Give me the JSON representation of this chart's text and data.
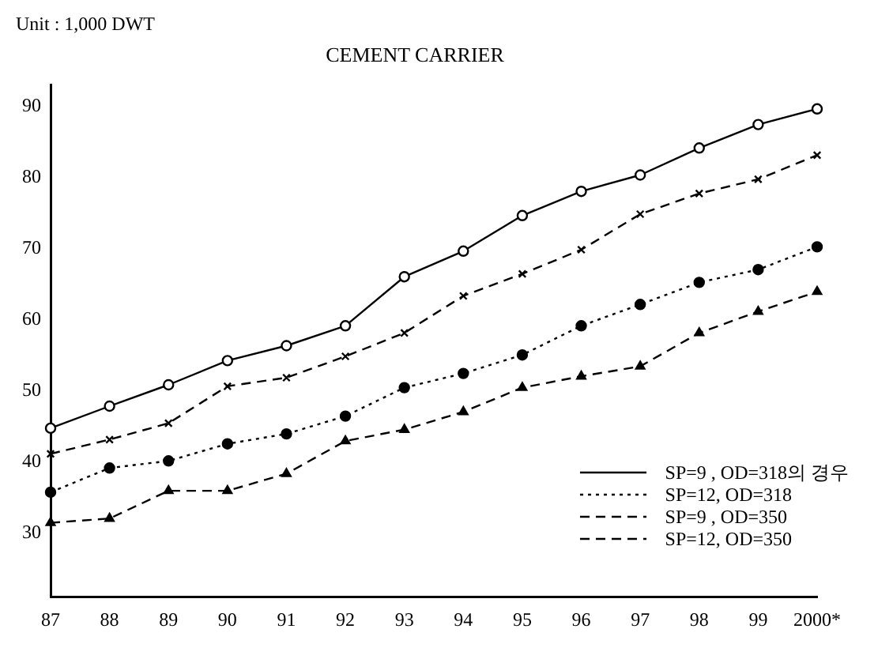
{
  "chart_data": {
    "type": "line",
    "title": "CEMENT CARRIER",
    "ylabel": "Unit :  1,000  DWT",
    "categories": [
      "87",
      "88",
      "89",
      "90",
      "91",
      "92",
      "93",
      "94",
      "95",
      "96",
      "97",
      "98",
      "99",
      "2000*"
    ],
    "series": [
      {
        "name": "SP=9 , OD=318의  경우",
        "color": "#000000",
        "marker": "circle",
        "line_style": "solid",
        "values": [
          44.7,
          47.8,
          50.8,
          54.2,
          56.3,
          59.1,
          66,
          69.6,
          74.6,
          78,
          80.3,
          84.1,
          87.4,
          89.6
        ]
      },
      {
        "name": "SP=12, OD=318",
        "color": "#000000",
        "marker": "circle",
        "line_style": "dotted",
        "values": [
          35.7,
          39.1,
          40.1,
          42.5,
          43.9,
          46.4,
          50.4,
          52.4,
          55,
          59.1,
          62.1,
          65.2,
          67,
          70.2
        ]
      },
      {
        "name": "SP=9 , OD=350",
        "color": "#000000",
        "marker": "cross",
        "line_style": "dashed",
        "values": [
          41.1,
          43.1,
          45.4,
          50.6,
          51.8,
          54.8,
          58.1,
          63.3,
          66.4,
          69.8,
          74.8,
          77.7,
          79.7,
          83.1
        ]
      },
      {
        "name": "SP=12, OD=350",
        "color": "#000000",
        "marker": "triangle",
        "line_style": "dashed",
        "values": [
          31.4,
          32,
          35.9,
          35.9,
          38.3,
          42.9,
          44.5,
          47,
          50.4,
          52,
          53.4,
          58.1,
          61.1,
          63.9
        ]
      }
    ],
    "ylim": [
      21,
      93
    ],
    "yticks": [
      30,
      40,
      50,
      60,
      70,
      80,
      90
    ],
    "grid": false,
    "legend": "bottom right"
  }
}
